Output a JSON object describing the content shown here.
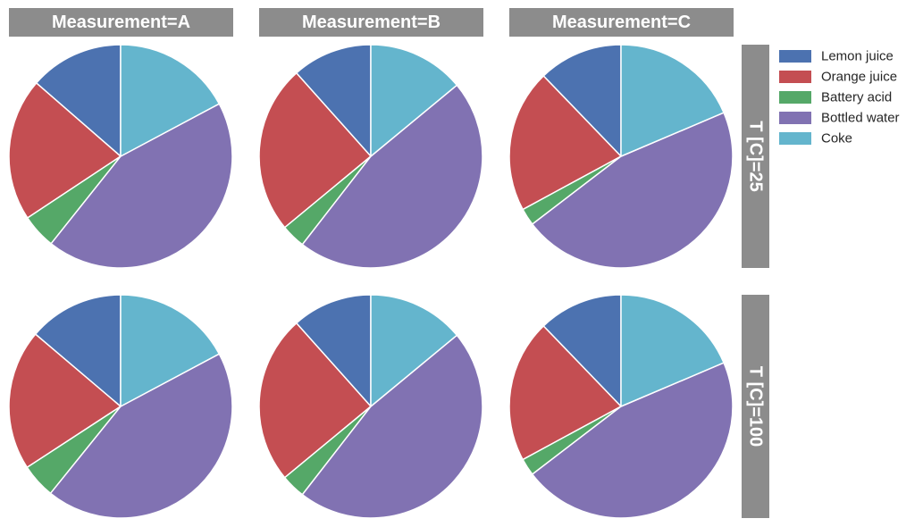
{
  "chart_data": {
    "type": "pie",
    "layout": "facet-grid",
    "column_facet": "Measurement",
    "row_facet": "T [C]",
    "columns": [
      "Measurement=A",
      "Measurement=B",
      "Measurement=C"
    ],
    "rows": [
      "T [C]=25",
      "T [C]=100"
    ],
    "categories": [
      "Lemon juice",
      "Orange juice",
      "Battery acid",
      "Bottled water",
      "Coke"
    ],
    "colors": [
      "#4c72b0",
      "#c44e52",
      "#55a868",
      "#8172b2",
      "#64b5cd"
    ],
    "legend": {
      "placement": "top-right",
      "entries": [
        "Lemon juice",
        "Orange juice",
        "Battery acid",
        "Bottled water",
        "Coke"
      ]
    },
    "panels": [
      {
        "row": "T [C]=25",
        "column": "Measurement=A",
        "values": [
          13.6,
          20.7,
          5.0,
          43.5,
          17.2
        ]
      },
      {
        "row": "T [C]=25",
        "column": "Measurement=B",
        "values": [
          11.6,
          24.4,
          3.5,
          46.5,
          14.0
        ]
      },
      {
        "row": "T [C]=25",
        "column": "Measurement=C",
        "values": [
          12.2,
          20.7,
          2.5,
          46.0,
          18.6
        ]
      },
      {
        "row": "T [C]=100",
        "column": "Measurement=A",
        "values": [
          13.8,
          20.4,
          5.0,
          43.6,
          17.2
        ]
      },
      {
        "row": "T [C]=100",
        "column": "Measurement=B",
        "values": [
          11.6,
          24.4,
          3.5,
          46.5,
          14.0
        ]
      },
      {
        "row": "T [C]=100",
        "column": "Measurement=C",
        "values": [
          12.2,
          20.7,
          2.5,
          46.0,
          18.6
        ]
      }
    ]
  }
}
